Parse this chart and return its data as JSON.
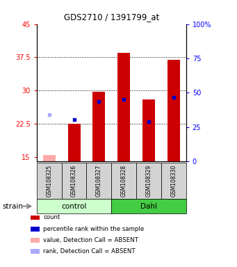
{
  "title": "GDS2710 / 1391799_at",
  "samples": [
    "GSM108325",
    "GSM108326",
    "GSM108327",
    "GSM108328",
    "GSM108329",
    "GSM108330"
  ],
  "group_colors": {
    "control": "#ccffcc",
    "Dahl": "#44cc44"
  },
  "ylim_left": [
    14,
    45
  ],
  "ylim_right": [
    0,
    100
  ],
  "yticks_left": [
    15,
    22.5,
    30,
    37.5,
    45
  ],
  "yticks_right": [
    0,
    25,
    50,
    75,
    100
  ],
  "bar_color": "#cc0000",
  "bar_color_absent": "#ffaaaa",
  "rank_color": "#0000cc",
  "rank_color_absent": "#aaaaff",
  "bar_width": 0.5,
  "count_values": [
    null,
    22.5,
    29.7,
    38.5,
    28.0,
    37.0
  ],
  "rank_values": [
    null,
    23.5,
    27.5,
    28.0,
    23.0,
    28.5
  ],
  "count_absent": [
    15.5,
    null,
    null,
    null,
    null,
    null
  ],
  "rank_absent": [
    24.5,
    null,
    null,
    null,
    null,
    null
  ],
  "bar_bottom": 14,
  "legend_items": [
    "count",
    "percentile rank within the sample",
    "value, Detection Call = ABSENT",
    "rank, Detection Call = ABSENT"
  ],
  "legend_colors": [
    "#cc0000",
    "#0000cc",
    "#ffaaaa",
    "#aaaaff"
  ],
  "grid_lines": [
    22.5,
    30,
    37.5
  ]
}
